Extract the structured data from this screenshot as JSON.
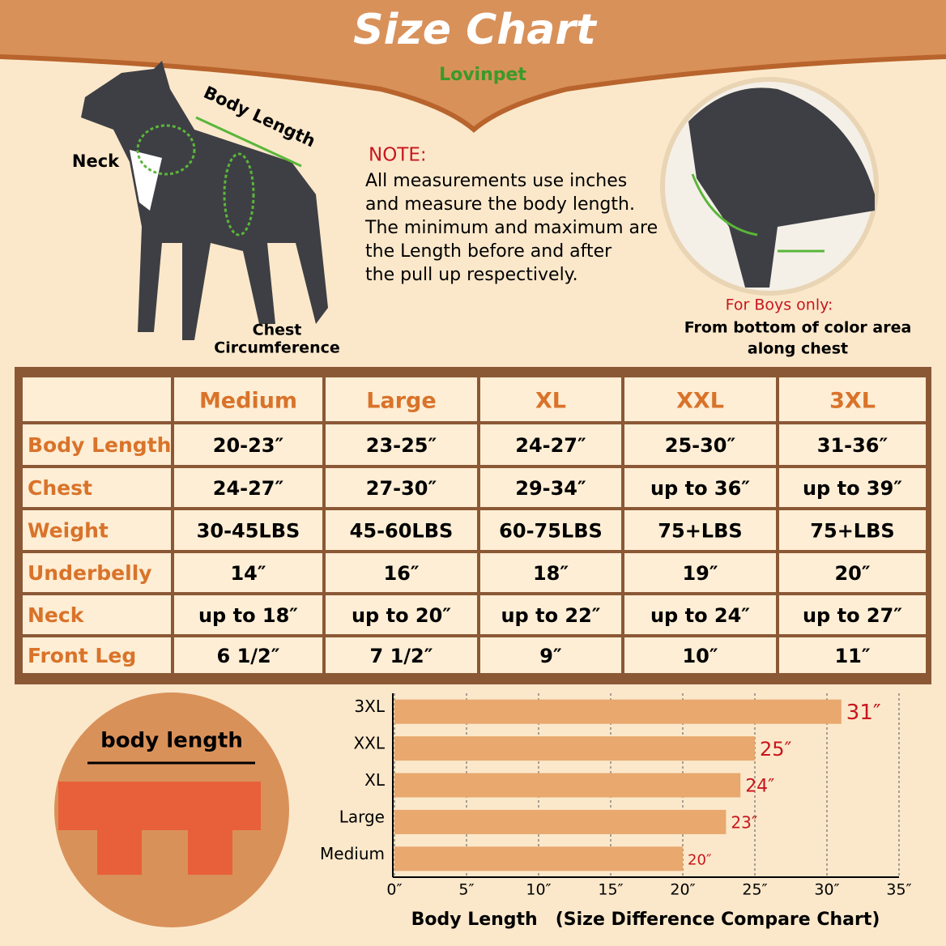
{
  "header": {
    "title": "Size Chart",
    "brand": "Lovinpet"
  },
  "dog_labels": {
    "neck": "Neck",
    "body_length": "Body Length",
    "chest": [
      "Chest",
      "Circumference"
    ]
  },
  "note": {
    "title": "NOTE:",
    "lines": [
      "All measurements use inches",
      "and measure the body length.",
      "The minimum and maximum are",
      "the Length before and after",
      "the pull up respectively."
    ]
  },
  "boys_note": {
    "title": "For Boys only:",
    "lines": [
      "From bottom of color area",
      "along chest"
    ]
  },
  "table": {
    "columns": [
      "Medium",
      "Large",
      "XL",
      "XXL",
      "3XL"
    ],
    "rows": [
      {
        "label": "Body Length",
        "cells": [
          "20-23″",
          "23-25″",
          "24-27″",
          "25-30″",
          "31-36″"
        ]
      },
      {
        "label": "Chest",
        "cells": [
          "24-27″",
          "27-30″",
          "29-34″",
          "up to 36″",
          "up to 39″"
        ]
      },
      {
        "label": "Weight",
        "cells": [
          "30-45LBS",
          "45-60LBS",
          "60-75LBS",
          "75+LBS",
          "75+LBS"
        ]
      },
      {
        "label": "Underbelly",
        "cells": [
          "14″",
          "16″",
          "18″",
          "19″",
          "20″"
        ]
      },
      {
        "label": "Neck",
        "cells": [
          "up to 18″",
          "up to 20″",
          "up to 22″",
          "up to 24″",
          "up to 27″"
        ]
      },
      {
        "label": "Front Leg",
        "cells": [
          "6 1/2″",
          "7 1/2″",
          "9″",
          "10″",
          "11″"
        ]
      }
    ]
  },
  "garment": {
    "label": "body length"
  },
  "chart_data": {
    "type": "hbar",
    "x_label": "Body Length　(Size Difference Compare Chart)",
    "categories": [
      "Medium",
      "Large",
      "XL",
      "XXL",
      "3XL"
    ],
    "values": [
      20,
      23,
      24,
      25,
      31
    ],
    "value_labels": [
      "20″",
      "23″",
      "24″",
      "25″",
      "31″"
    ],
    "color": "#e8a86e",
    "label_color": "#c8161d",
    "xlim": [
      0,
      35
    ],
    "xticks": [
      {
        "value": 0,
        "label": "0″"
      },
      {
        "value": 5,
        "label": "5″"
      },
      {
        "value": 10,
        "label": "10″"
      },
      {
        "value": 15,
        "label": "15″"
      },
      {
        "value": 20,
        "label": "20″"
      },
      {
        "value": 25,
        "label": "25″"
      },
      {
        "value": 30,
        "label": "30″"
      },
      {
        "value": 35,
        "label": "35″"
      }
    ],
    "grid": true
  }
}
